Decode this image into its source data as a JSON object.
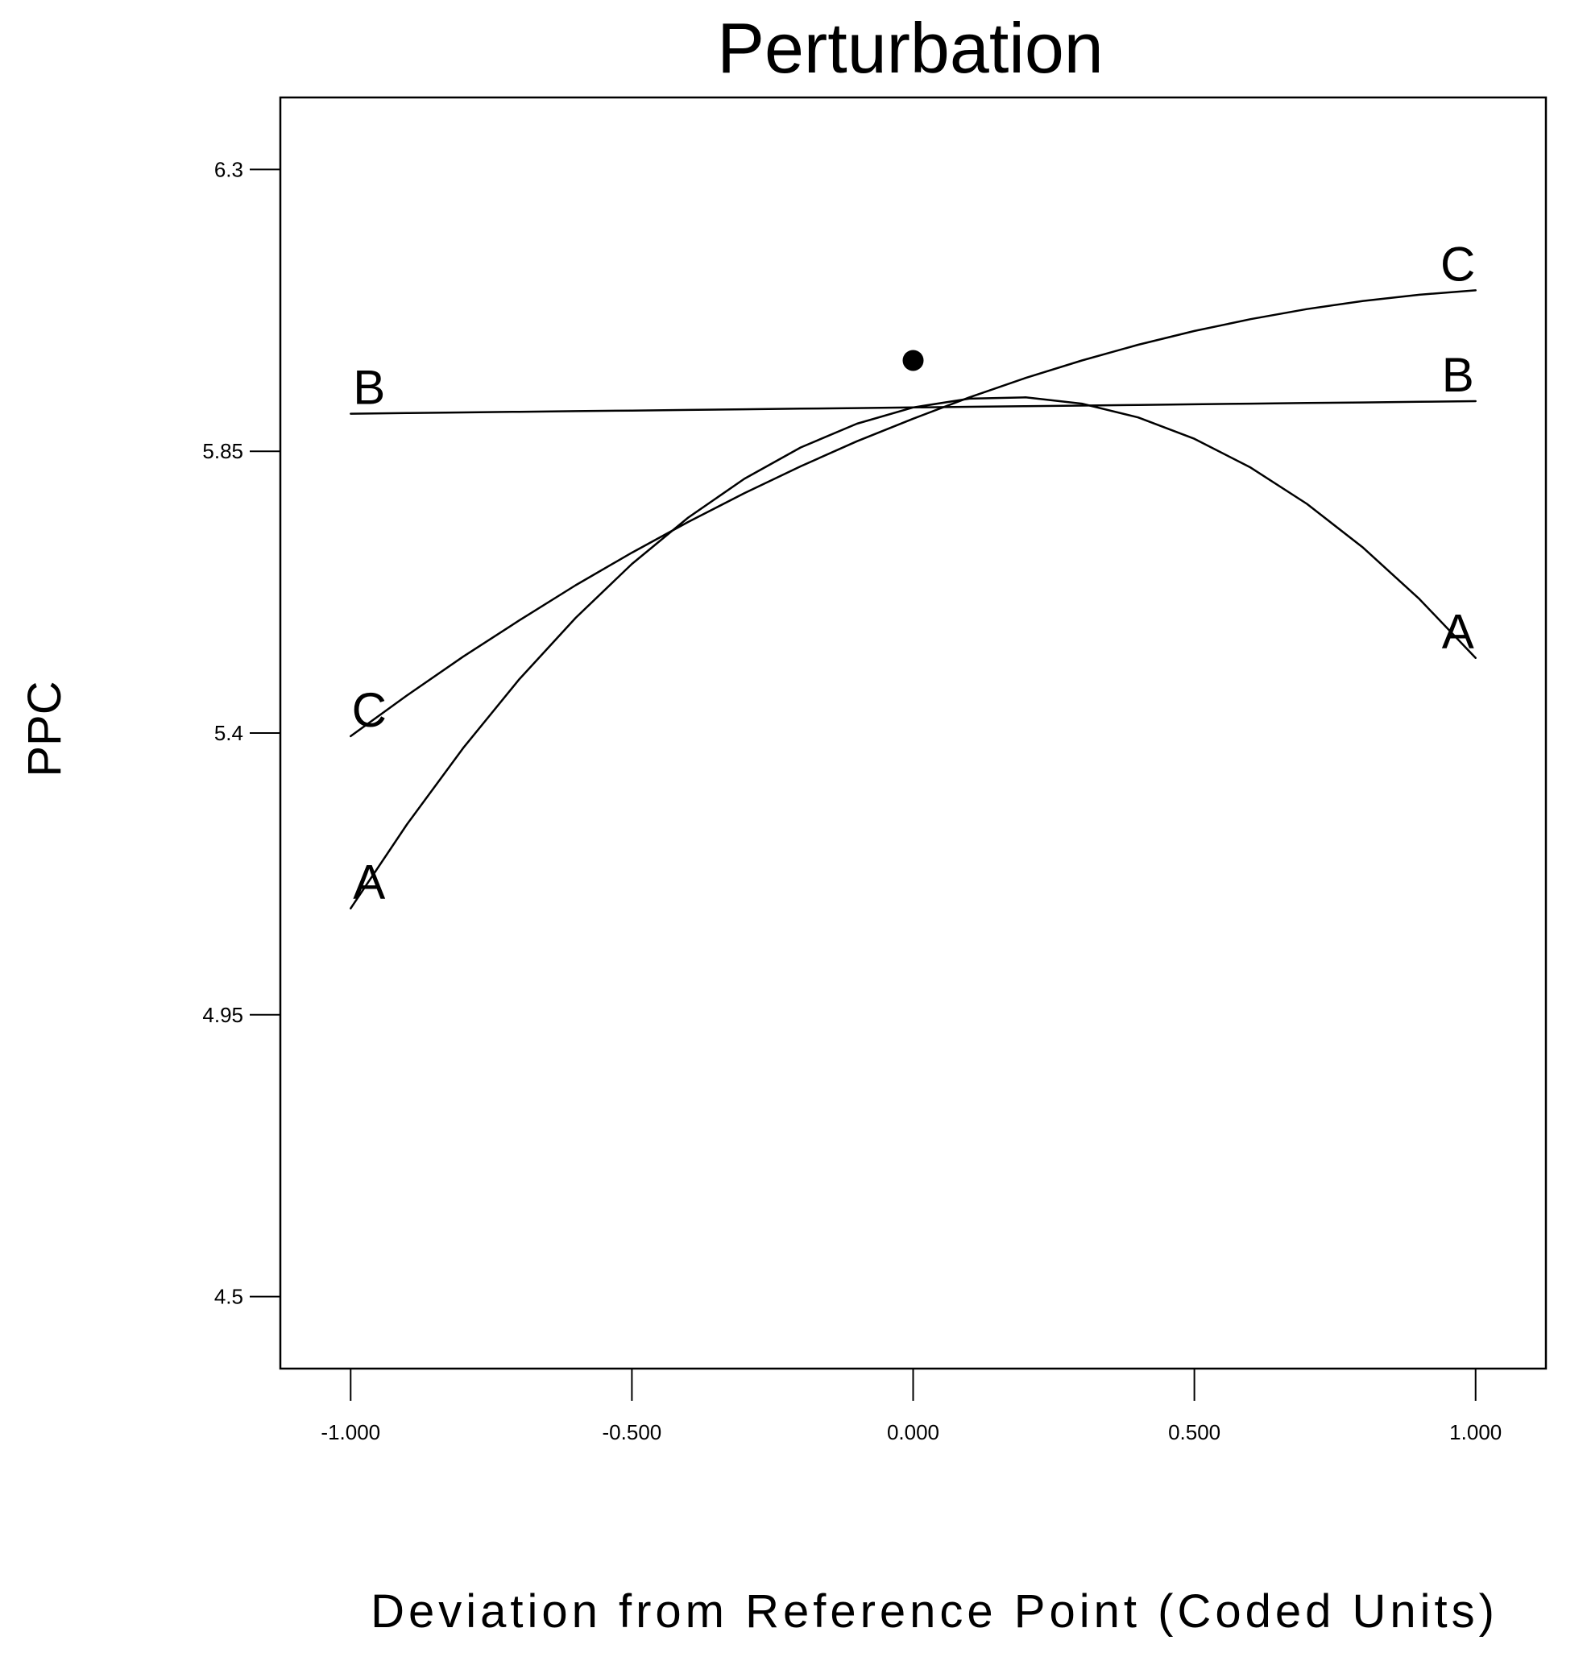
{
  "chart_data": {
    "type": "line",
    "title": "Perturbation",
    "xlabel": "Deviation from Reference Point (Coded Units)",
    "ylabel": "PPC",
    "xlim": [
      -1.125,
      1.125
    ],
    "ylim": [
      4.385,
      6.415
    ],
    "x_ticks": [
      -1.0,
      -0.5,
      0.0,
      0.5,
      1.0
    ],
    "x_tick_labels": [
      "-1.000",
      "-0.500",
      "0.000",
      "0.500",
      "1.000"
    ],
    "y_ticks": [
      4.5,
      4.95,
      5.4,
      5.85,
      6.3
    ],
    "y_tick_labels": [
      "4.5",
      "4.95",
      "5.4",
      "5.85",
      "6.3"
    ],
    "grid": false,
    "legend": "none",
    "reference_point": {
      "x": 0.0,
      "y": 5.995
    },
    "x": [
      -1.0,
      -0.9,
      -0.8,
      -0.7,
      -0.6,
      -0.5,
      -0.4,
      -0.3,
      -0.2,
      -0.1,
      0.0,
      0.1,
      0.2,
      0.3,
      0.4,
      0.5,
      0.6,
      0.7,
      0.8,
      0.9,
      1.0
    ],
    "series": [
      {
        "name": "A",
        "values": [
          5.12,
          5.254,
          5.376,
          5.486,
          5.584,
          5.67,
          5.744,
          5.806,
          5.856,
          5.894,
          5.92,
          5.934,
          5.936,
          5.926,
          5.904,
          5.87,
          5.824,
          5.766,
          5.696,
          5.614,
          5.52
        ]
      },
      {
        "name": "B",
        "values": [
          5.91,
          5.911,
          5.912,
          5.913,
          5.914,
          5.915,
          5.916,
          5.917,
          5.918,
          5.919,
          5.92,
          5.921,
          5.922,
          5.923,
          5.924,
          5.925,
          5.926,
          5.927,
          5.928,
          5.929,
          5.93
        ]
      },
      {
        "name": "C",
        "values": [
          5.395,
          5.46,
          5.522,
          5.58,
          5.636,
          5.688,
          5.737,
          5.783,
          5.826,
          5.866,
          5.902,
          5.936,
          5.967,
          5.995,
          6.02,
          6.042,
          6.061,
          6.077,
          6.09,
          6.1,
          6.107
        ]
      }
    ],
    "series_labels": [
      "A",
      "B",
      "C"
    ]
  }
}
